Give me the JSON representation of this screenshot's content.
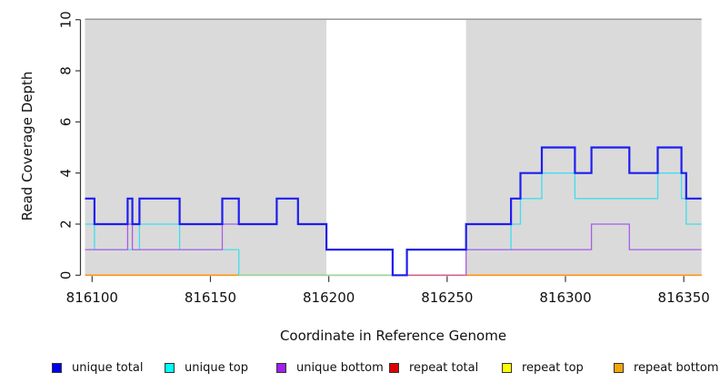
{
  "chart_data": {
    "type": "line",
    "step": true,
    "title": "",
    "xlabel": "Coordinate in Reference Genome",
    "ylabel": "Read Coverage Depth",
    "x_range": [
      816097,
      816357.5
    ],
    "y_range": [
      0,
      10
    ],
    "x_ticks": [
      816100,
      816150,
      816200,
      816250,
      816300,
      816350
    ],
    "y_ticks": [
      0,
      2,
      4,
      6,
      8,
      10
    ],
    "grid": false,
    "legend_position": "bottom",
    "colors": {
      "shade": "#DADADA",
      "top_border": "#8C8C8C",
      "axis": "#3a3a3a",
      "tick_text": "#111111"
    },
    "shaded_regions": [
      {
        "from": 816097,
        "to": 816199
      },
      {
        "from": 816258,
        "to": 816357.5
      }
    ],
    "series": [
      {
        "name": "unique total",
        "color": "#1E1EF0",
        "width": 2.2,
        "steps": [
          [
            816097,
            3
          ],
          [
            816101,
            2
          ],
          [
            816115,
            3
          ],
          [
            816117,
            2
          ],
          [
            816120,
            3
          ],
          [
            816137,
            2
          ],
          [
            816155,
            3
          ],
          [
            816162,
            2
          ],
          [
            816178,
            3
          ],
          [
            816187,
            2
          ],
          [
            816199,
            1
          ],
          [
            816227,
            0
          ],
          [
            816233,
            1
          ],
          [
            816258,
            2
          ],
          [
            816277,
            3
          ],
          [
            816281,
            4
          ],
          [
            816290,
            5
          ],
          [
            816304,
            4
          ],
          [
            816311,
            5
          ],
          [
            816327,
            4
          ],
          [
            816339,
            5
          ],
          [
            816349,
            4
          ],
          [
            816351,
            3
          ]
        ]
      },
      {
        "name": "unique top",
        "color": "#3FDEEE",
        "width": 1.3,
        "steps": [
          [
            816097,
            2
          ],
          [
            816101,
            1
          ],
          [
            816120,
            2
          ],
          [
            816137,
            1
          ],
          [
            816162,
            0
          ],
          [
            816233,
            1
          ],
          [
            816277,
            2
          ],
          [
            816281,
            3
          ],
          [
            816290,
            4
          ],
          [
            816304,
            3
          ],
          [
            816339,
            4
          ],
          [
            816349,
            3
          ],
          [
            816351,
            2
          ]
        ]
      },
      {
        "name": "unique bottom",
        "color": "#A85CE6",
        "width": 1.3,
        "steps": [
          [
            816097,
            1
          ],
          [
            816115,
            2
          ],
          [
            816117,
            1
          ],
          [
            816155,
            2
          ],
          [
            816178,
            3
          ],
          [
            816187,
            2
          ],
          [
            816199,
            1
          ],
          [
            816227,
            0
          ],
          [
            816258,
            1
          ],
          [
            816311,
            2
          ],
          [
            816327,
            1
          ]
        ]
      },
      {
        "name": "repeat total",
        "color": "#DD0000",
        "width": 1.3,
        "steps": [
          [
            816097,
            0
          ]
        ]
      },
      {
        "name": "repeat top",
        "color": "#FFFF00",
        "width": 1.3,
        "steps": [
          [
            816097,
            0
          ]
        ]
      },
      {
        "name": "repeat bottom",
        "color": "#FF9712",
        "width": 1.6,
        "steps": [
          [
            816097,
            0
          ]
        ]
      }
    ],
    "zero_line_overlap_segments": [
      {
        "from": 816162,
        "to": 816233,
        "color": "#9CD69C"
      },
      {
        "from": 816233,
        "to": 816258,
        "color": "#D4608C"
      }
    ]
  },
  "legend": {
    "items": [
      {
        "label": "unique total",
        "color": "#0000EE"
      },
      {
        "label": "unique top",
        "color": "#00FFFF"
      },
      {
        "label": "unique bottom",
        "color": "#A020F0"
      },
      {
        "label": "repeat total",
        "color": "#DD0000"
      },
      {
        "label": "repeat top",
        "color": "#FFFF00"
      },
      {
        "label": "repeat bottom",
        "color": "#F5A60A"
      }
    ]
  }
}
